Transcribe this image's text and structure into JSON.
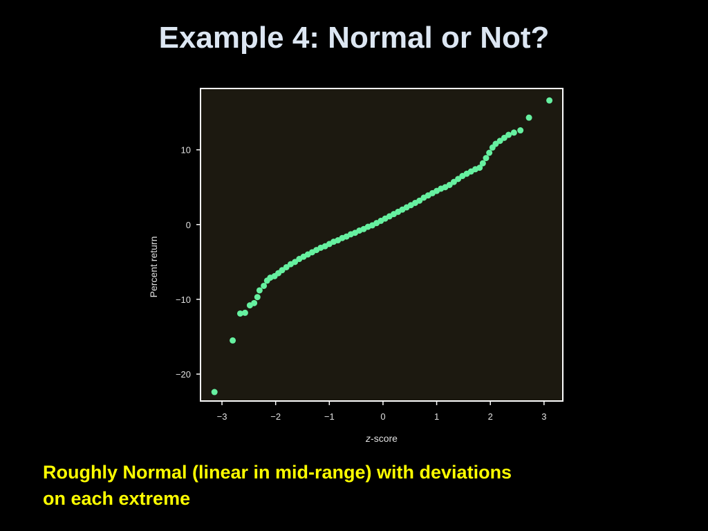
{
  "slide": {
    "title": "Example 4:  Normal or Not?",
    "caption_line1": "Roughly Normal (linear in mid-range) with deviations",
    "caption_line2": "on each extreme"
  },
  "colors": {
    "background": "#000000",
    "title": "#dce6f2",
    "caption": "#ffff00",
    "plot_background": "#1c1910",
    "points": "#66f0a0",
    "frame": "#ffffff"
  },
  "chart_data": {
    "type": "scatter",
    "title": "",
    "xlabel_prefix": "z",
    "xlabel_suffix": "-score",
    "ylabel": "Percent return",
    "xlim": [
      -3.4,
      3.35
    ],
    "ylim": [
      -23.6,
      18.2
    ],
    "xticks": [
      -3,
      -2,
      -1,
      0,
      1,
      2,
      3
    ],
    "xtick_labels": [
      "−3",
      "−2",
      "−1",
      "0",
      "1",
      "2",
      "3"
    ],
    "yticks": [
      10,
      0,
      -10,
      -20
    ],
    "ytick_labels": [
      "10",
      "0",
      "−10",
      "−20"
    ],
    "grid": false,
    "legend": "none",
    "points": [
      [
        -3.14,
        -22.4
      ],
      [
        -2.8,
        -15.5
      ],
      [
        -2.66,
        -11.9
      ],
      [
        -2.57,
        -11.8
      ],
      [
        -2.48,
        -10.8
      ],
      [
        -2.4,
        -10.5
      ],
      [
        -2.34,
        -9.7
      ],
      [
        -2.3,
        -8.8
      ],
      [
        -2.22,
        -8.2
      ],
      [
        -2.16,
        -7.5
      ],
      [
        -2.1,
        -7.1
      ],
      [
        -2.02,
        -6.9
      ],
      [
        -1.95,
        -6.5
      ],
      [
        -1.88,
        -6.1
      ],
      [
        -1.8,
        -5.7
      ],
      [
        -1.72,
        -5.3
      ],
      [
        -1.64,
        -5.0
      ],
      [
        -1.56,
        -4.6
      ],
      [
        -1.48,
        -4.3
      ],
      [
        -1.4,
        -4.0
      ],
      [
        -1.32,
        -3.7
      ],
      [
        -1.24,
        -3.4
      ],
      [
        -1.16,
        -3.1
      ],
      [
        -1.08,
        -2.9
      ],
      [
        -1.0,
        -2.6
      ],
      [
        -0.92,
        -2.3
      ],
      [
        -0.84,
        -2.1
      ],
      [
        -0.76,
        -1.8
      ],
      [
        -0.68,
        -1.6
      ],
      [
        -0.6,
        -1.3
      ],
      [
        -0.52,
        -1.1
      ],
      [
        -0.44,
        -0.8
      ],
      [
        -0.36,
        -0.6
      ],
      [
        -0.28,
        -0.3
      ],
      [
        -0.2,
        -0.1
      ],
      [
        -0.12,
        0.2
      ],
      [
        -0.04,
        0.5
      ],
      [
        0.04,
        0.8
      ],
      [
        0.12,
        1.1
      ],
      [
        0.2,
        1.4
      ],
      [
        0.28,
        1.7
      ],
      [
        0.36,
        2.0
      ],
      [
        0.44,
        2.3
      ],
      [
        0.52,
        2.6
      ],
      [
        0.6,
        2.9
      ],
      [
        0.68,
        3.2
      ],
      [
        0.76,
        3.6
      ],
      [
        0.84,
        3.9
      ],
      [
        0.92,
        4.2
      ],
      [
        1.0,
        4.5
      ],
      [
        1.08,
        4.8
      ],
      [
        1.16,
        5.0
      ],
      [
        1.24,
        5.3
      ],
      [
        1.32,
        5.7
      ],
      [
        1.4,
        6.1
      ],
      [
        1.48,
        6.5
      ],
      [
        1.56,
        6.8
      ],
      [
        1.64,
        7.1
      ],
      [
        1.72,
        7.4
      ],
      [
        1.8,
        7.6
      ],
      [
        1.86,
        8.2
      ],
      [
        1.92,
        8.9
      ],
      [
        1.98,
        9.6
      ],
      [
        2.04,
        10.3
      ],
      [
        2.1,
        10.8
      ],
      [
        2.18,
        11.2
      ],
      [
        2.26,
        11.6
      ],
      [
        2.34,
        12.0
      ],
      [
        2.44,
        12.3
      ],
      [
        2.56,
        12.6
      ],
      [
        2.72,
        14.3
      ],
      [
        3.1,
        16.6
      ]
    ]
  }
}
